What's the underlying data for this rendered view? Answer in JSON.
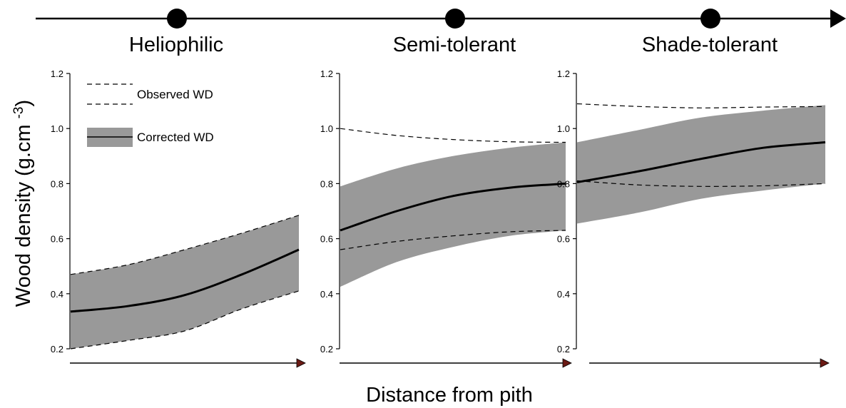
{
  "chart_data": {
    "type": "area",
    "ylabel": "Wood density (g.cm-3)",
    "xlabel": "Distance from pith",
    "ylim": [
      0.2,
      1.2
    ],
    "yticks": [
      "0.2",
      "0.4",
      "0.6",
      "0.8",
      "1.0",
      "1.2"
    ],
    "x": [
      0,
      0.25,
      0.5,
      0.75,
      1
    ],
    "legend": {
      "placement": "top-left",
      "observed": "Observed WD",
      "corrected": "Corrected WD"
    },
    "colors": {
      "band": "#999999",
      "line": "#000000",
      "arrow_head": "#6b1a14"
    },
    "panels": [
      {
        "title": "Heliophilic",
        "corrected": [
          0.335,
          0.355,
          0.395,
          0.47,
          0.56
        ],
        "corrected_band_upper": [
          0.47,
          0.505,
          0.56,
          0.62,
          0.685
        ],
        "corrected_band_lower": [
          0.2,
          0.23,
          0.265,
          0.345,
          0.41
        ],
        "observed_upper": [
          0.47,
          0.505,
          0.56,
          0.62,
          0.685
        ],
        "observed_lower": [
          0.2,
          0.23,
          0.265,
          0.345,
          0.41
        ]
      },
      {
        "title": "Semi-tolerant",
        "corrected": [
          0.63,
          0.7,
          0.755,
          0.785,
          0.8
        ],
        "corrected_band_upper": [
          0.79,
          0.855,
          0.9,
          0.93,
          0.95
        ],
        "corrected_band_lower": [
          0.425,
          0.515,
          0.57,
          0.61,
          0.63
        ],
        "observed_upper": [
          1.0,
          0.975,
          0.96,
          0.952,
          0.95
        ],
        "observed_lower": [
          0.56,
          0.59,
          0.61,
          0.625,
          0.63
        ]
      },
      {
        "title": "Shade-tolerant",
        "corrected": [
          0.805,
          0.845,
          0.89,
          0.93,
          0.95
        ],
        "corrected_band_upper": [
          0.95,
          0.995,
          1.04,
          1.065,
          1.085
        ],
        "corrected_band_lower": [
          0.655,
          0.695,
          0.745,
          0.775,
          0.8
        ],
        "observed_upper": [
          1.09,
          1.08,
          1.075,
          1.078,
          1.08
        ],
        "observed_lower": [
          0.81,
          0.795,
          0.79,
          0.792,
          0.8
        ]
      }
    ]
  }
}
